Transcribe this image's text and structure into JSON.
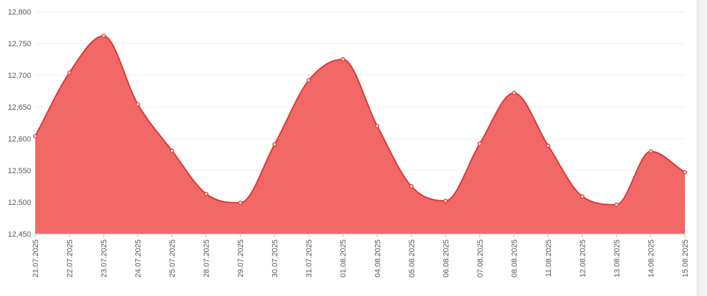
{
  "chart_data": {
    "type": "area",
    "title": "",
    "xlabel": "",
    "ylabel": "",
    "ylim": [
      12450,
      12800
    ],
    "yticks": [
      12450,
      12500,
      12550,
      12600,
      12650,
      12700,
      12750,
      12800
    ],
    "ytick_labels": [
      "12,450",
      "12,500",
      "12,550",
      "12,600",
      "12,650",
      "12,700",
      "12,750",
      "12,800"
    ],
    "categories": [
      "21.07.2025",
      "22.07.2025",
      "23.07.2025",
      "24.07.2025",
      "25.07.2025",
      "28.07.2025",
      "29.07.2025",
      "30.07.2025",
      "31.07.2025",
      "01.08.2025",
      "04.08.2025",
      "05.08.2025",
      "06.08.2025",
      "07.08.2025",
      "08.08.2025",
      "11.08.2025",
      "12.08.2025",
      "13.08.2025",
      "14.08.2025",
      "15.08.2025"
    ],
    "values": [
      12604,
      12704,
      12762,
      12654,
      12581,
      12513,
      12499,
      12591,
      12692,
      12725,
      12620,
      12525,
      12502,
      12592,
      12672,
      12589,
      12509,
      12496,
      12580,
      12547
    ],
    "grid": true,
    "legend": "none",
    "colors": {
      "fill": "#f0605f",
      "line": "#dd3535",
      "marker_fill": "#fbd0d0",
      "grid": "#ececec",
      "baseline": "#bdbdbd"
    }
  }
}
